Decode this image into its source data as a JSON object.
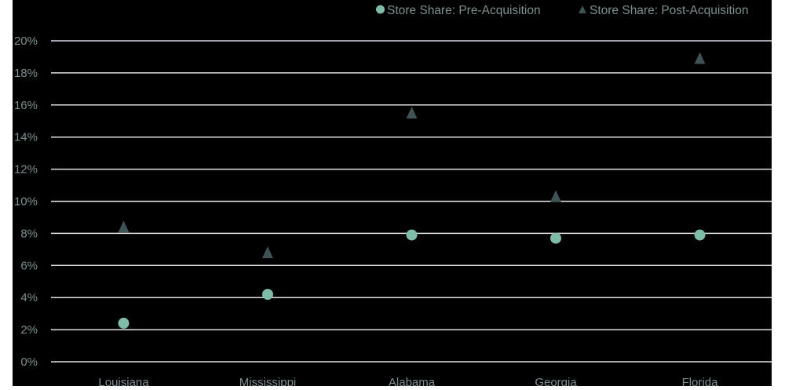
{
  "chart_data": {
    "type": "scatter",
    "title": "",
    "xlabel": "",
    "ylabel": "",
    "categories": [
      "Louisiana",
      "Mississippi",
      "Alabama",
      "Georgia",
      "Florida"
    ],
    "series": [
      {
        "name": "Store Share: Pre-Acquisition",
        "marker": "circle",
        "color": "#7fbcaa",
        "values": [
          2.4,
          4.2,
          7.9,
          7.7,
          7.9
        ]
      },
      {
        "name": "Store Share: Post-Acquisition",
        "marker": "triangle",
        "color": "#3f5256",
        "values": [
          8.4,
          6.8,
          15.5,
          10.3,
          18.9
        ]
      }
    ],
    "y_ticks": [
      "0%",
      "2%",
      "4%",
      "6%",
      "8%",
      "10%",
      "12%",
      "14%",
      "16%",
      "18%",
      "20%"
    ],
    "ylim": [
      0,
      20
    ],
    "y_unit": "%",
    "grid": true,
    "legend_position": "top-right"
  },
  "colors": {
    "background": "#000000",
    "gridline": "#e2e2e2",
    "text": "#7d8f91"
  }
}
